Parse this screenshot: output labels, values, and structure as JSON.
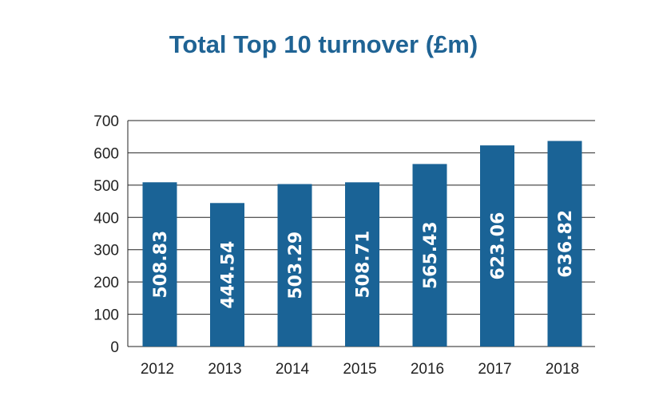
{
  "chart_data": {
    "type": "bar",
    "title": "Total Top 10 turnover (£m)",
    "xlabel": "",
    "ylabel": "",
    "categories": [
      "2012",
      "2013",
      "2014",
      "2015",
      "2016",
      "2017",
      "2018"
    ],
    "values": [
      508.83,
      444.54,
      503.29,
      508.71,
      565.43,
      623.06,
      636.82
    ],
    "data_labels": [
      "508.83",
      "444.54",
      "503.29",
      "508.71",
      "565.43",
      "623.06",
      "636.82"
    ],
    "ylim": [
      0,
      700
    ],
    "yticks": [
      0,
      100,
      200,
      300,
      400,
      500,
      600,
      700
    ],
    "grid": true,
    "legend": "none",
    "colors": {
      "bar": "#1a6396",
      "title": "#1f6394",
      "grid": "#222222"
    }
  }
}
